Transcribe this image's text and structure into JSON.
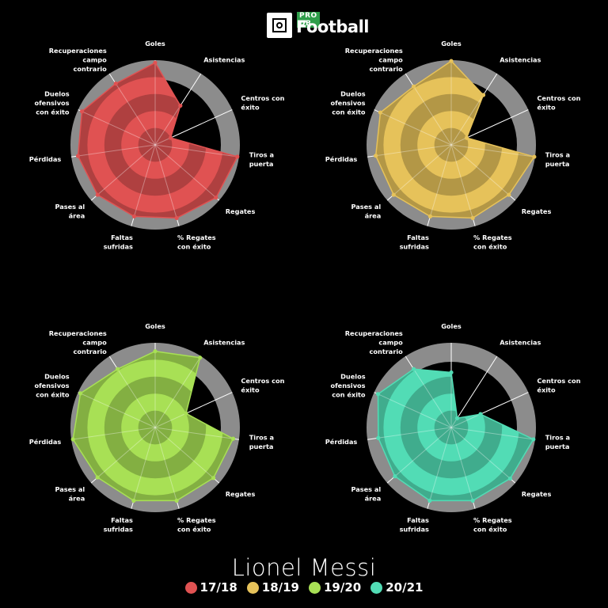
{
  "logo": {
    "pro": "PRO DB",
    "word": "Football"
  },
  "player": "Lionel Messi",
  "chart_data": {
    "type": "radar",
    "axes": [
      {
        "key": "goles",
        "label": [
          "Goles"
        ]
      },
      {
        "key": "asistencias",
        "label": [
          "Asistencias"
        ]
      },
      {
        "key": "centros",
        "label": [
          "Centros con",
          "éxito"
        ]
      },
      {
        "key": "tiros",
        "label": [
          "Tiros a",
          "puerta"
        ]
      },
      {
        "key": "regates",
        "label": [
          "Regates"
        ]
      },
      {
        "key": "pct_regates",
        "label": [
          "% Regates",
          "con éxito"
        ]
      },
      {
        "key": "faltas",
        "label": [
          "Faltas",
          "sufridas"
        ]
      },
      {
        "key": "pases_area",
        "label": [
          "Pases al",
          "área"
        ]
      },
      {
        "key": "perdidas",
        "label": [
          "Pérdidas"
        ]
      },
      {
        "key": "duelos",
        "label": [
          "Duelos",
          "ofensivos",
          "con éxito"
        ]
      },
      {
        "key": "recuperaciones",
        "label": [
          "Recuperaciones",
          "campo",
          "contrario"
        ]
      }
    ],
    "scale": [
      0,
      1
    ],
    "series": [
      {
        "name": "17/18",
        "color": "#e05252",
        "values": [
          0.97,
          0.55,
          0.2,
          0.98,
          0.95,
          0.9,
          0.88,
          0.9,
          0.92,
          0.95,
          0.86
        ]
      },
      {
        "name": "18/19",
        "color": "#e6c25a",
        "values": [
          0.99,
          0.7,
          0.2,
          0.99,
          0.9,
          0.9,
          0.88,
          0.9,
          0.9,
          0.92,
          0.82
        ]
      },
      {
        "name": "19/20",
        "color": "#a8e055",
        "values": [
          0.9,
          0.98,
          0.4,
          0.93,
          0.91,
          0.9,
          0.9,
          0.9,
          0.98,
          0.97,
          0.82
        ]
      },
      {
        "name": "20/21",
        "color": "#52dcb5",
        "values": [
          0.65,
          0.13,
          0.38,
          0.98,
          0.92,
          0.9,
          0.9,
          0.88,
          0.87,
          0.95,
          0.82
        ]
      }
    ]
  }
}
